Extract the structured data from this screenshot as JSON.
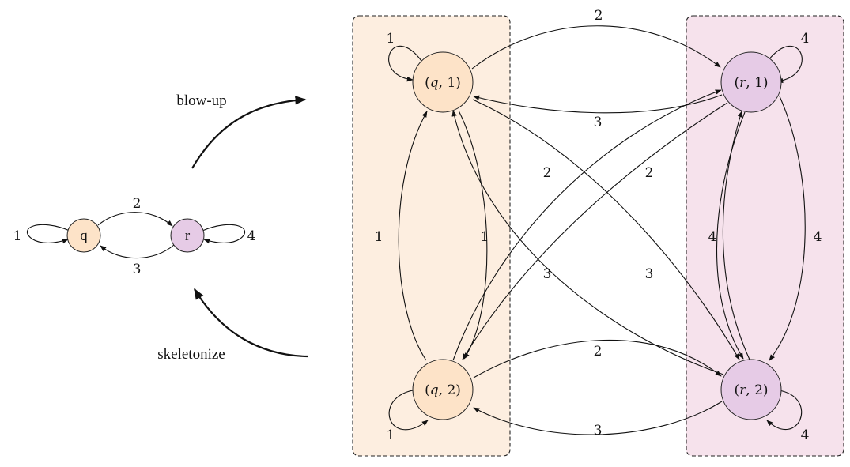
{
  "small_graph": {
    "nodes": {
      "q": "q",
      "r": "r"
    },
    "edge_labels": {
      "q_loop": "1",
      "q_to_r": "2",
      "r_to_q": "3",
      "r_loop": "4"
    }
  },
  "actions": {
    "blow_up": "blow-up",
    "skeletonize": "skeletonize"
  },
  "big_graph": {
    "nodes": {
      "q1": {
        "state": "q",
        "index": "1"
      },
      "q2": {
        "state": "q",
        "index": "2"
      },
      "r1": {
        "state": "r",
        "index": "1"
      },
      "r2": {
        "state": "r",
        "index": "2"
      }
    },
    "edge_labels": {
      "q1_loop": "1",
      "q2_loop": "1",
      "r1_loop": "4",
      "r2_loop": "4",
      "q2_to_q1": "1",
      "q1_to_q2": "1",
      "r1_to_r2_outer": "4",
      "r1_to_r2_inner": "4",
      "q1_to_r1": "2",
      "r1_to_q1": "3",
      "q2_to_r1": "2",
      "q1_to_r2": "2",
      "r2_to_q1": "3",
      "r1_to_q2": "3",
      "q2_to_r2": "2",
      "r2_to_q2": "3"
    }
  },
  "colors": {
    "q_node": "#fde3c8",
    "r_node": "#e6cbe6",
    "q_group": "#fdeee0",
    "r_group": "#f6e2ec"
  }
}
